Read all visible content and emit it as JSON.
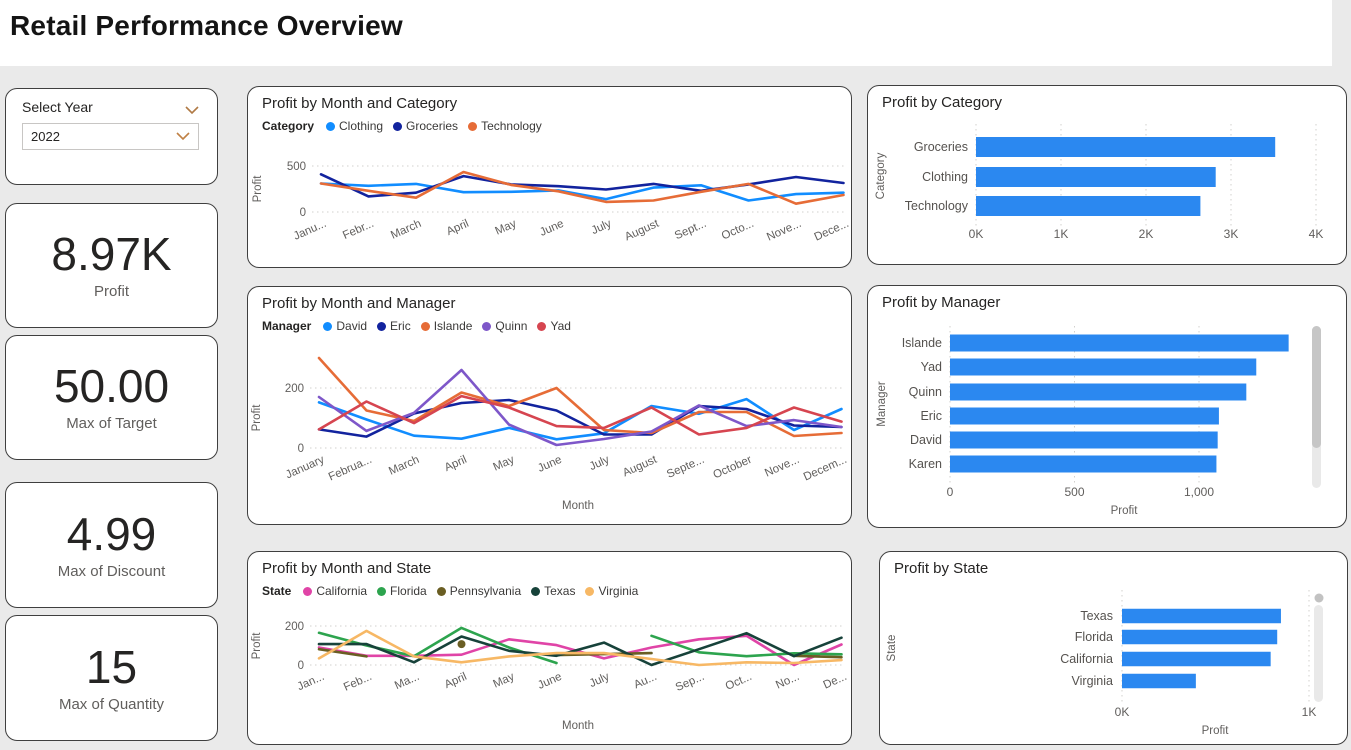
{
  "header": {
    "title": "Retail Performance Overview"
  },
  "slicer": {
    "label": "Select Year",
    "value": "2022",
    "icons": [
      "chevron-down-icon",
      "chevron-down-icon"
    ]
  },
  "kpis": [
    {
      "value": "8.97K",
      "label": "Profit"
    },
    {
      "value": "50.00",
      "label": "Max of Target"
    },
    {
      "value": "4.99",
      "label": "Max of Discount"
    },
    {
      "value": "15",
      "label": "Max of Quantity"
    }
  ],
  "colors": {
    "bar_blue": "#2b88f0",
    "grid": "#d2d0ce",
    "axis_text": "#605E5C",
    "scroll_thumb": "#c6c6c6",
    "scroll_track": "#e9e9e9"
  },
  "chart_data": [
    {
      "type": "line",
      "title": "Profit by Month and Category",
      "legend_title": "Category",
      "x": [
        "January",
        "February",
        "March",
        "April",
        "May",
        "June",
        "July",
        "August",
        "September",
        "October",
        "November",
        "December"
      ],
      "x_labels_display": [
        "Janu...",
        "Febr...",
        "March",
        "April",
        "May",
        "June",
        "July",
        "August",
        "Sept...",
        "Octo...",
        "Nove...",
        "Dece..."
      ],
      "series": [
        {
          "name": "Clothing",
          "color": "#118DFF",
          "values": [
            310,
            285,
            305,
            215,
            220,
            235,
            140,
            265,
            290,
            125,
            195,
            210
          ]
        },
        {
          "name": "Groceries",
          "color": "#12239E",
          "values": [
            410,
            170,
            210,
            390,
            300,
            280,
            245,
            305,
            230,
            300,
            380,
            315
          ]
        },
        {
          "name": "Technology",
          "color": "#E66C37",
          "values": [
            310,
            230,
            155,
            435,
            295,
            225,
            110,
            125,
            220,
            305,
            90,
            185
          ]
        }
      ],
      "xlabel": null,
      "ylabel": "Profit",
      "yticks": [
        0,
        500
      ],
      "ylim": [
        0,
        640
      ],
      "grid": true,
      "legend_position": "top"
    },
    {
      "type": "line",
      "title": "Profit by Month and Manager",
      "legend_title": "Manager",
      "x": [
        "January",
        "February",
        "March",
        "April",
        "May",
        "June",
        "July",
        "August",
        "September",
        "October",
        "November",
        "December"
      ],
      "x_labels_display": [
        "January",
        "Februa...",
        "March",
        "April",
        "May",
        "June",
        "July",
        "August",
        "Septe...",
        "October",
        "Nove...",
        "Decem..."
      ],
      "series": [
        {
          "name": "David",
          "color": "#118DFF",
          "values": [
            152,
            95,
            41,
            31,
            67,
            29,
            49,
            140,
            114,
            163,
            60,
            130
          ]
        },
        {
          "name": "Eric",
          "color": "#12239E",
          "values": [
            62,
            38,
            115,
            150,
            160,
            125,
            45,
            45,
            140,
            130,
            75,
            70
          ]
        },
        {
          "name": "Islande",
          "color": "#E66C37",
          "values": [
            300,
            125,
            90,
            185,
            140,
            200,
            60,
            50,
            120,
            120,
            40,
            50
          ]
        },
        {
          "name": "Quinn",
          "color": "#7E57C9",
          "values": [
            170,
            57,
            117,
            260,
            78,
            10,
            30,
            55,
            142,
            73,
            93,
            70
          ]
        },
        {
          "name": "Yad",
          "color": "#D64550",
          "values": [
            62,
            155,
            83,
            173,
            135,
            73,
            67,
            135,
            45,
            67,
            135,
            88
          ]
        }
      ],
      "xlabel": "Month",
      "ylabel": "Profit",
      "yticks": [
        0,
        200
      ],
      "ylim": [
        0,
        320
      ],
      "grid": true,
      "legend_position": "top"
    },
    {
      "type": "line",
      "title": "Profit by Month and State",
      "legend_title": "State",
      "x": [
        "January",
        "February",
        "March",
        "April",
        "May",
        "June",
        "July",
        "August",
        "September",
        "October",
        "November",
        "December"
      ],
      "x_labels_display": [
        "Jan...",
        "Feb...",
        "Ma...",
        "April",
        "May",
        "June",
        "July",
        "Au...",
        "Sep...",
        "Oct...",
        "No...",
        "De..."
      ],
      "series": [
        {
          "name": "California",
          "color": "#E044A7",
          "values": [
            90,
            47,
            47,
            53,
            132,
            102,
            34,
            90,
            132,
            150,
            0,
            105
          ]
        },
        {
          "name": "Florida",
          "color": "#2DA44E",
          "values": [
            165,
            100,
            45,
            190,
            90,
            10,
            null,
            150,
            65,
            45,
            60,
            55
          ]
        },
        {
          "name": "Pennsylvania",
          "color": "#6A5E23",
          "values": [
            81,
            44,
            null,
            107,
            null,
            51,
            56,
            61,
            null,
            null,
            47,
            40
          ]
        },
        {
          "name": "Texas",
          "color": "#17423A",
          "values": [
            107,
            107,
            14,
            146,
            73,
            47,
            115,
            0,
            81,
            163,
            45,
            140
          ]
        },
        {
          "name": "Virginia",
          "color": "#F7B865",
          "values": [
            34,
            175,
            44,
            14,
            44,
            61,
            61,
            31,
            0,
            14,
            10,
            25
          ]
        }
      ],
      "xlabel": "Month",
      "ylabel": "Profit",
      "yticks": [
        0,
        200
      ],
      "ylim": [
        0,
        230
      ],
      "grid": true,
      "legend_position": "top"
    },
    {
      "type": "bar",
      "title": "Profit by Category",
      "categories": [
        "Groceries",
        "Clothing",
        "Technology"
      ],
      "values": [
        3520,
        2820,
        2640
      ],
      "xlabel": null,
      "ylabel": "Category",
      "xlim": [
        0,
        4000
      ],
      "xticks": [
        0,
        1000,
        2000,
        3000,
        4000
      ],
      "xtick_labels": [
        "0K",
        "1K",
        "2K",
        "3K",
        "4K"
      ],
      "grid": true,
      "scrollbar": false,
      "scroll_dot": false
    },
    {
      "type": "bar",
      "title": "Profit by Manager",
      "categories": [
        "Islande",
        "Yad",
        "Quinn",
        "Eric",
        "David",
        "Karen"
      ],
      "values": [
        1360,
        1230,
        1190,
        1080,
        1075,
        1070
      ],
      "xlabel": "Profit",
      "ylabel": "Manager",
      "xlim": [
        0,
        1460
      ],
      "xticks": [
        0,
        500,
        1000
      ],
      "xtick_labels": [
        "0",
        "500",
        "1,000"
      ],
      "grid": true,
      "scrollbar": true,
      "scroll_dot": false
    },
    {
      "type": "bar",
      "title": "Profit by State",
      "categories": [
        "Texas",
        "Florida",
        "California",
        "Virginia"
      ],
      "values": [
        850,
        830,
        795,
        395
      ],
      "xlabel": "Profit",
      "ylabel": "State",
      "xlim": [
        0,
        1000
      ],
      "xticks": [
        0,
        1000
      ],
      "xtick_labels": [
        "0K",
        "1K"
      ],
      "grid": true,
      "scrollbar": true,
      "scroll_dot": true
    }
  ]
}
